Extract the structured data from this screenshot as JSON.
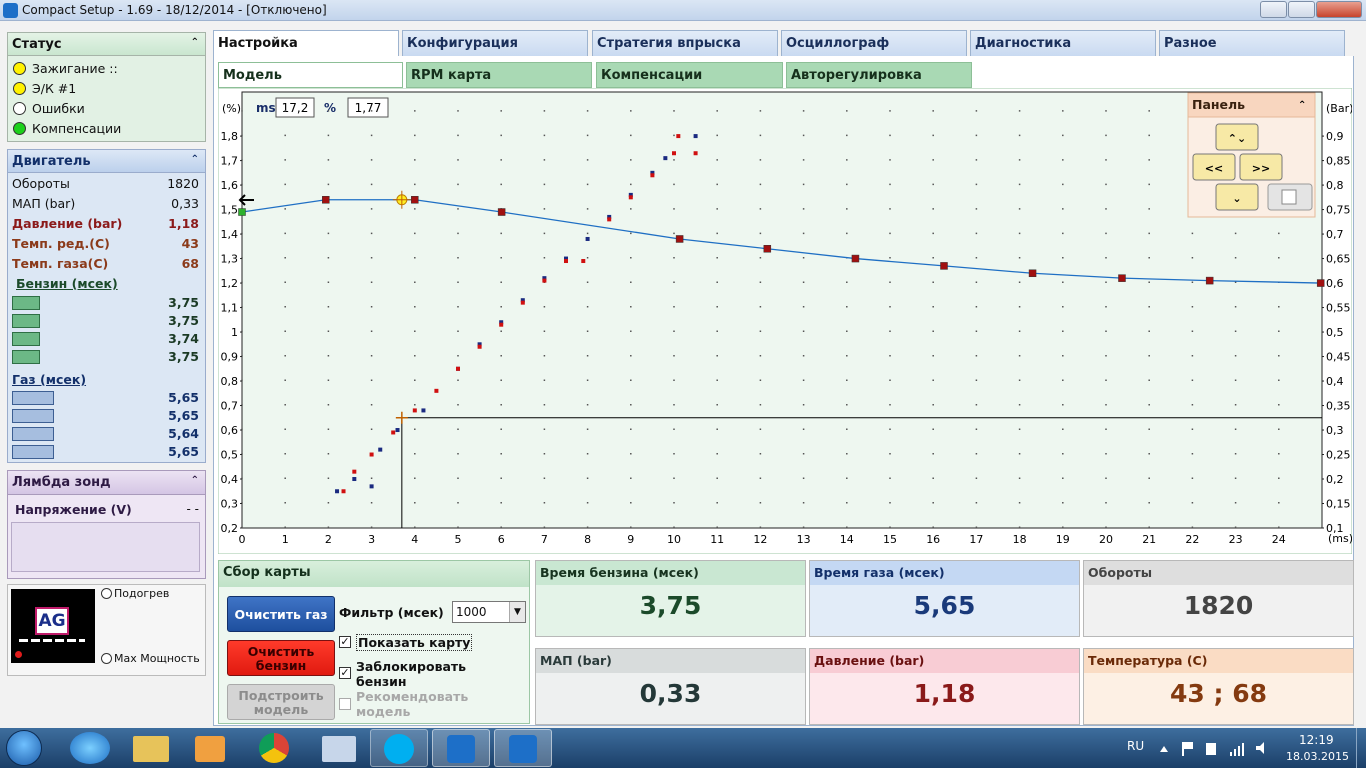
{
  "window": {
    "title": "Compact Setup - 1.69 - 18/12/2014 - [Отключено]"
  },
  "tabs": [
    "Настройка",
    "Конфигурация",
    "Стратегия впрыска",
    "Осциллограф",
    "Диагностика",
    "Разное"
  ],
  "subtabs": [
    "Модель",
    "RPM карта",
    "Компенсации",
    "Авторегулировка"
  ],
  "status": {
    "title": "Статус",
    "items": [
      "Зажигание ::",
      "Э/К #1",
      "Ошибки",
      "Компенсации"
    ]
  },
  "engine": {
    "title": "Двигатель",
    "rows": [
      {
        "label": "Обороты",
        "value": "1820"
      },
      {
        "label": "МАП (bar)",
        "value": "0,33"
      },
      {
        "label": "Давление (bar)",
        "value": "1,18"
      },
      {
        "label": "Темп. ред.(C)",
        "value": "43"
      },
      {
        "label": "Темп. газа(C)",
        "value": "68"
      }
    ],
    "petrol_title": "Бензин (мсек)",
    "petrol": [
      "3,75",
      "3,75",
      "3,74",
      "3,75"
    ],
    "gas_title": "Газ (мсек)",
    "gas": [
      "5,65",
      "5,65",
      "5,64",
      "5,65"
    ]
  },
  "lambda": {
    "title": "Лямбда зонд",
    "label": "Напряжение (V)",
    "value": "- -"
  },
  "logo": {
    "text": "AG",
    "heat": "Подогрев",
    "power": "Max Мощность"
  },
  "readout": {
    "ms_label": "ms",
    "ms": "17,2",
    "pct_label": "%",
    "pct": "1,77"
  },
  "panel": {
    "title": "Панель"
  },
  "chart_data": {
    "type": "line",
    "x_label": "(ms)",
    "y_label": "(%)",
    "y2_label": "(Bar)",
    "xlim": [
      0,
      25
    ],
    "ylim": [
      0.2,
      1.98
    ],
    "y2lim": [
      0.1,
      0.99
    ],
    "xticks": [
      0,
      1,
      2,
      3,
      4,
      5,
      6,
      7,
      8,
      9,
      10,
      11,
      12,
      13,
      14,
      15,
      16,
      17,
      18,
      19,
      20,
      21,
      22,
      23,
      24
    ],
    "yticks": [
      {
        "value": 0.2,
        "label": "0,2"
      },
      {
        "value": 0.3,
        "label": "0,3"
      },
      {
        "value": 0.4,
        "label": "0,4"
      },
      {
        "value": 0.5,
        "label": "0,5"
      },
      {
        "value": 0.6,
        "label": "0,6"
      },
      {
        "value": 0.7,
        "label": "0,7"
      },
      {
        "value": 0.8,
        "label": "0,8"
      },
      {
        "value": 0.9,
        "label": "0,9"
      },
      1,
      {
        "value": 1.1,
        "label": "1,1"
      },
      {
        "value": 1.2,
        "label": "1,2"
      },
      {
        "value": 1.3,
        "label": "1,3"
      },
      {
        "value": 1.4,
        "label": "1,4"
      },
      {
        "value": 1.5,
        "label": "1,5"
      },
      {
        "value": 1.6,
        "label": "1,6"
      },
      {
        "value": 1.7,
        "label": "1,7"
      },
      {
        "value": 1.8,
        "label": "1,8"
      }
    ],
    "y2ticks": [
      {
        "value": 0.1,
        "label": "0,1"
      },
      {
        "value": 0.15,
        "label": "0,15"
      },
      {
        "value": 0.2,
        "label": "0,2"
      },
      {
        "value": 0.25,
        "label": "0,25"
      },
      {
        "value": 0.3,
        "label": "0,3"
      },
      {
        "value": 0.35,
        "label": "0,35"
      },
      {
        "value": 0.4,
        "label": "0,4"
      },
      {
        "value": 0.45,
        "label": "0,45"
      },
      {
        "value": 0.5,
        "label": "0,5"
      },
      {
        "value": 0.55,
        "label": "0,55"
      },
      {
        "value": 0.6,
        "label": "0,6"
      },
      {
        "value": 0.65,
        "label": "0,65"
      },
      {
        "value": 0.7,
        "label": "0,7"
      },
      {
        "value": 0.75,
        "label": "0,75"
      },
      {
        "value": 0.8,
        "label": "0,8"
      },
      {
        "value": 0.85,
        "label": "0,85"
      },
      {
        "value": 0.9,
        "label": "0,9"
      }
    ],
    "grid": true,
    "series": [
      {
        "type": "line",
        "color": "#1f6fc4",
        "marker_color": "#a01010",
        "selected_index": 0,
        "selected_color": "#2db02d",
        "x": [
          0,
          1.94,
          4.0,
          6.01,
          10.13,
          12.16,
          14.2,
          16.25,
          18.3,
          20.37,
          22.4,
          24.97
        ],
        "values": [
          1.49,
          1.54,
          1.54,
          1.49,
          1.38,
          1.34,
          1.3,
          1.27,
          1.24,
          1.22,
          1.21,
          1.2
        ]
      },
      {
        "type": "scatter",
        "color": "#1a2a80",
        "x": [
          2.2,
          3.0,
          2.6,
          3.2,
          3.6,
          4.2,
          5.0,
          5.5,
          6.0,
          6.5,
          7.0,
          7.5,
          8.0,
          8.5,
          9.0,
          9.5,
          9.8,
          10.5
        ],
        "values": [
          0.35,
          0.37,
          0.4,
          0.52,
          0.6,
          0.68,
          0.85,
          0.95,
          1.04,
          1.13,
          1.22,
          1.3,
          1.38,
          1.47,
          1.56,
          1.65,
          1.71,
          1.8
        ]
      },
      {
        "type": "scatter",
        "color": "#d01010",
        "x": [
          2.35,
          2.6,
          3.0,
          3.5,
          4.0,
          4.5,
          5.0,
          5.5,
          6.0,
          6.5,
          7.0,
          7.5,
          7.9,
          8.5,
          9.0,
          9.5,
          10.0,
          10.1,
          10.5
        ],
        "values": [
          0.35,
          0.43,
          0.5,
          0.59,
          0.68,
          0.76,
          0.85,
          0.94,
          1.03,
          1.12,
          1.21,
          1.29,
          1.29,
          1.46,
          1.55,
          1.64,
          1.73,
          1.8,
          1.73
        ]
      }
    ],
    "cursor": {
      "x": 3.7,
      "y": 0.65
    },
    "marker": {
      "x": 3.7,
      "y": 1.54
    }
  },
  "map": {
    "title": "Сбор карты",
    "clear_gas": "Очистить газ",
    "clear_petrol": "Очистить бензин",
    "build": "Подстроить модель",
    "filter_label": "Фильтр (мсек)",
    "filter": "1000",
    "show_map": "Показать карту",
    "lock": "Заблокировать бензин",
    "recommend": "Рекомендовать модель"
  },
  "gauges": [
    {
      "label": "Время бензина (мсек)",
      "value": "3,75"
    },
    {
      "label": "Время газа (мсек)",
      "value": "5,65"
    },
    {
      "label": "Обороты",
      "value": "1820"
    },
    {
      "label": "МАП (bar)",
      "value": "0,33"
    },
    {
      "label": "Давление (bar)",
      "value": "1,18"
    },
    {
      "label": "Температура (C)",
      "value": "43 ; 68"
    }
  ],
  "taskbar": {
    "lang": "RU",
    "time": "12:19",
    "date": "18.03.2015"
  }
}
